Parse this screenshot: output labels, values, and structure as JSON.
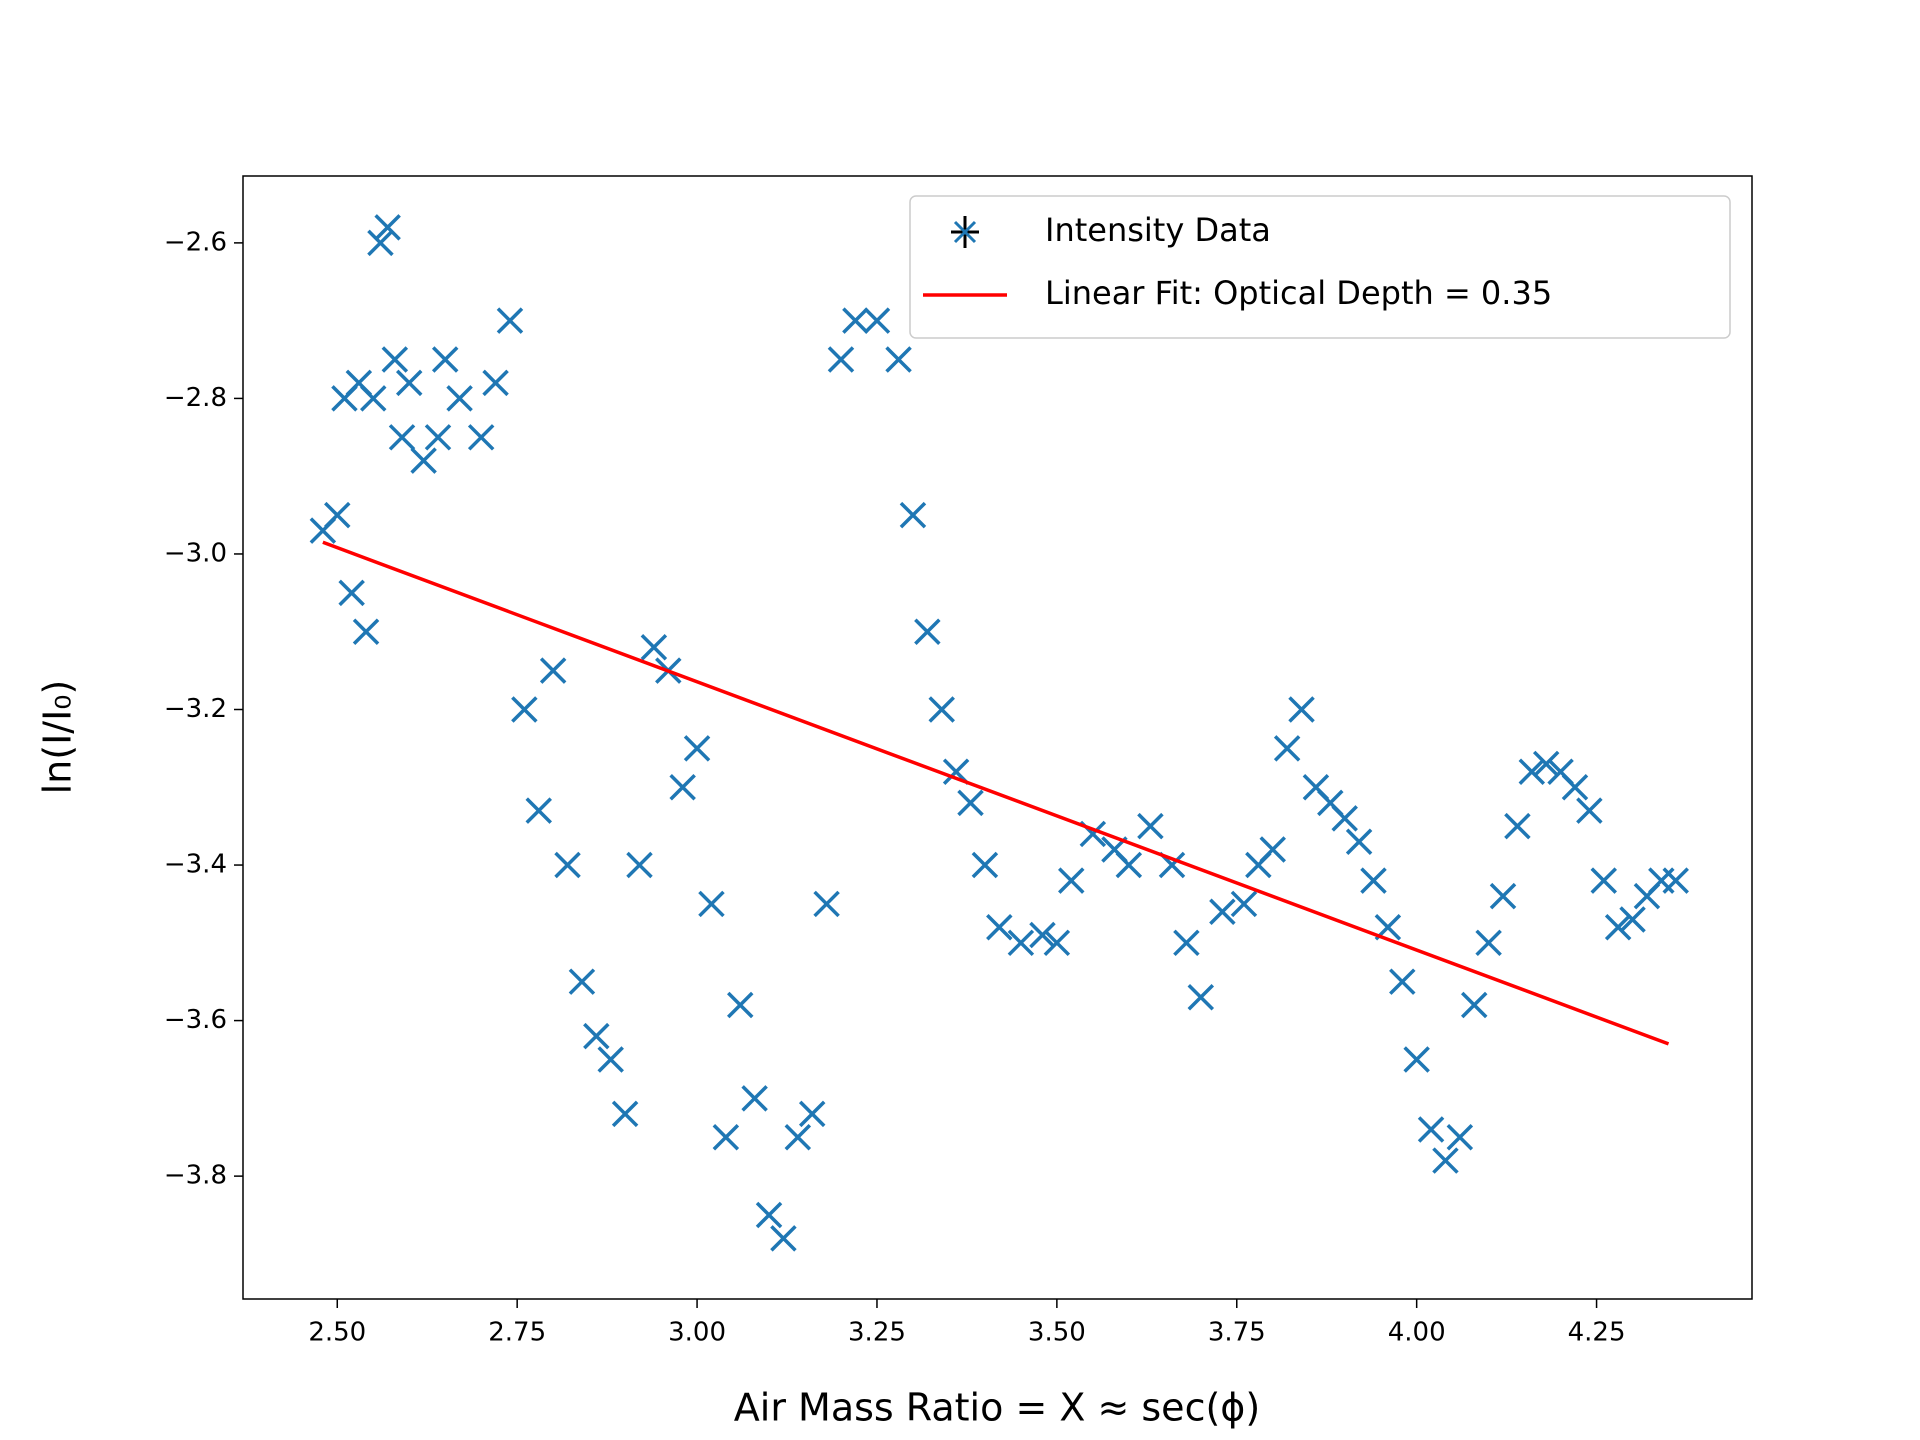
{
  "chart_data": {
    "type": "scatter",
    "xlabel": "Air Mass Ratio = X ≈ sec(ϕ)",
    "ylabel": "ln(I/I₀)",
    "xlim": [
      2.369,
      4.466
    ],
    "ylim": [
      -3.958,
      -2.514
    ],
    "xticks": [
      {
        "value": 2.5,
        "label": "2.50"
      },
      {
        "value": 2.75,
        "label": "2.75"
      },
      {
        "value": 3.0,
        "label": "3.00"
      },
      {
        "value": 3.25,
        "label": "3.25"
      },
      {
        "value": 3.5,
        "label": "3.50"
      },
      {
        "value": 3.75,
        "label": "3.75"
      },
      {
        "value": 4.0,
        "label": "4.00"
      },
      {
        "value": 4.25,
        "label": "4.25"
      }
    ],
    "yticks": [
      {
        "value": -2.6,
        "label": "−2.6"
      },
      {
        "value": -2.8,
        "label": "−2.8"
      },
      {
        "value": -3.0,
        "label": "−3.0"
      },
      {
        "value": -3.2,
        "label": "−3.2"
      },
      {
        "value": -3.4,
        "label": "−3.4"
      },
      {
        "value": -3.6,
        "label": "−3.6"
      },
      {
        "value": -3.8,
        "label": "−3.8"
      }
    ],
    "legend": "upper right",
    "series": [
      {
        "name": "Intensity Data",
        "type": "scatter",
        "color": "#1f77b4",
        "x": [
          2.48,
          2.5,
          2.51,
          2.52,
          2.53,
          2.54,
          2.55,
          2.56,
          2.57,
          2.58,
          2.59,
          2.6,
          2.62,
          2.64,
          2.65,
          2.67,
          2.7,
          2.72,
          2.74,
          2.76,
          2.78,
          2.8,
          2.82,
          2.84,
          2.86,
          2.88,
          2.9,
          2.92,
          2.94,
          2.96,
          2.98,
          3.0,
          3.02,
          3.04,
          3.06,
          3.08,
          3.1,
          3.12,
          3.14,
          3.16,
          3.18,
          3.2,
          3.22,
          3.25,
          3.28,
          3.3,
          3.32,
          3.34,
          3.36,
          3.38,
          3.4,
          3.42,
          3.45,
          3.48,
          3.5,
          3.52,
          3.55,
          3.58,
          3.6,
          3.63,
          3.66,
          3.68,
          3.7,
          3.73,
          3.76,
          3.78,
          3.8,
          3.82,
          3.84,
          3.86,
          3.88,
          3.9,
          3.92,
          3.94,
          3.96,
          3.98,
          4.0,
          4.02,
          4.04,
          4.06,
          4.08,
          4.1,
          4.12,
          4.14,
          4.16,
          4.18,
          4.2,
          4.22,
          4.24,
          4.26,
          4.28,
          4.3,
          4.32,
          4.34,
          4.36
        ],
        "values": [
          -2.97,
          -2.95,
          -2.8,
          -3.05,
          -2.78,
          -3.1,
          -2.8,
          -2.6,
          -2.58,
          -2.75,
          -2.85,
          -2.78,
          -2.88,
          -2.85,
          -2.75,
          -2.8,
          -2.85,
          -2.78,
          -2.7,
          -3.2,
          -3.33,
          -3.15,
          -3.4,
          -3.55,
          -3.62,
          -3.65,
          -3.72,
          -3.4,
          -3.12,
          -3.15,
          -3.3,
          -3.25,
          -3.45,
          -3.75,
          -3.58,
          -3.7,
          -3.85,
          -3.88,
          -3.75,
          -3.72,
          -3.45,
          -2.75,
          -2.7,
          -2.7,
          -2.75,
          -2.95,
          -3.1,
          -3.2,
          -3.28,
          -3.32,
          -3.4,
          -3.48,
          -3.5,
          -3.49,
          -3.5,
          -3.42,
          -3.36,
          -3.38,
          -3.4,
          -3.35,
          -3.4,
          -3.5,
          -3.57,
          -3.46,
          -3.45,
          -3.4,
          -3.38,
          -3.25,
          -3.2,
          -3.3,
          -3.32,
          -3.34,
          -3.37,
          -3.42,
          -3.48,
          -3.55,
          -3.65,
          -3.74,
          -3.78,
          -3.75,
          -3.58,
          -3.5,
          -3.44,
          -3.35,
          -3.28,
          -3.27,
          -3.28,
          -3.3,
          -3.33,
          -3.42,
          -3.48,
          -3.47,
          -3.44,
          -3.42,
          -3.42
        ]
      },
      {
        "name": "Linear Fit: Optical Depth = 0.35",
        "type": "line",
        "color": "#ff0000",
        "x": [
          2.48,
          4.35
        ],
        "values": [
          -2.985,
          -3.63
        ]
      }
    ]
  }
}
